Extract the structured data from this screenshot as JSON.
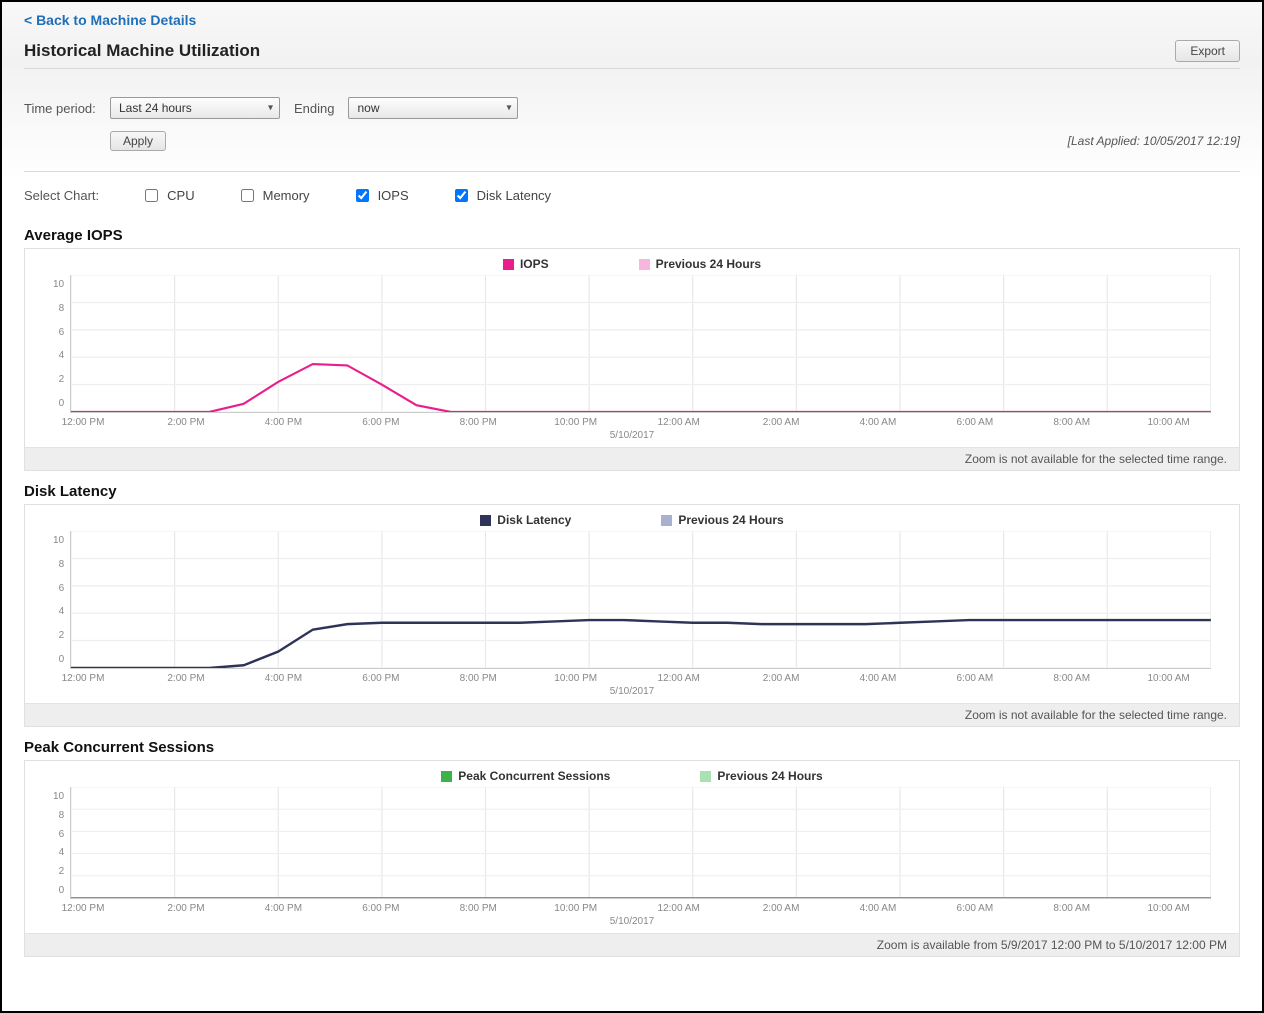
{
  "nav": {
    "back_label": "< Back to Machine Details"
  },
  "header": {
    "title": "Historical Machine Utilization",
    "export_label": "Export"
  },
  "controls": {
    "time_period_label": "Time period:",
    "time_period_value": "Last 24 hours",
    "ending_label": "Ending",
    "ending_value": "now",
    "apply_label": "Apply",
    "last_applied": "[Last Applied: 10/05/2017 12:19]"
  },
  "chart_selector": {
    "label": "Select Chart:",
    "options": [
      {
        "label": "CPU",
        "checked": false
      },
      {
        "label": "Memory",
        "checked": false
      },
      {
        "label": "IOPS",
        "checked": true
      },
      {
        "label": "Disk Latency",
        "checked": true
      }
    ]
  },
  "shared_axis": {
    "y_ticks": [
      10,
      8,
      6,
      4,
      2,
      0
    ],
    "x_labels": [
      "12:00 PM",
      "2:00 PM",
      "4:00 PM",
      "6:00 PM",
      "8:00 PM",
      "10:00 PM",
      "12:00 AM",
      "2:00 AM",
      "4:00 AM",
      "6:00 AM",
      "8:00 AM",
      "10:00 AM"
    ],
    "date_caption": "5/10/2017",
    "ylim": [
      0,
      10
    ],
    "grid_color": "#e7e7e7",
    "background_color": "#ffffff",
    "tick_fontsize": 10,
    "tick_color": "#888888"
  },
  "charts": {
    "iops": {
      "title": "Average IOPS",
      "type": "line",
      "legend": [
        {
          "label": "IOPS",
          "color": "#e91e8c"
        },
        {
          "label": "Previous 24 Hours",
          "color": "#f6b6dd"
        }
      ],
      "series": {
        "primary_color": "#e91e8c",
        "secondary_color": "#f6b6dd",
        "line_width": 1.6,
        "values": [
          0,
          0,
          0,
          0,
          0.0,
          0.6,
          2.2,
          3.5,
          3.4,
          2.0,
          0.5,
          0,
          0,
          0,
          0,
          0,
          0,
          0,
          0,
          0,
          0,
          0,
          0,
          0,
          0,
          0,
          0,
          0,
          0,
          0,
          0,
          0,
          0,
          0
        ]
      },
      "zoom_note": "Zoom is not available for the selected time range."
    },
    "disk_latency": {
      "title": "Disk Latency",
      "type": "line",
      "legend": [
        {
          "label": "Disk Latency",
          "color": "#2f3357"
        },
        {
          "label": "Previous 24 Hours",
          "color": "#aab0d0"
        }
      ],
      "series": {
        "primary_color": "#2f3357",
        "secondary_color": "#aab0d0",
        "line_width": 1.8,
        "values": [
          0,
          0,
          0,
          0,
          0,
          0.2,
          1.2,
          2.8,
          3.2,
          3.3,
          3.3,
          3.3,
          3.3,
          3.3,
          3.4,
          3.5,
          3.5,
          3.4,
          3.3,
          3.3,
          3.2,
          3.2,
          3.2,
          3.2,
          3.3,
          3.4,
          3.5,
          3.5,
          3.5,
          3.5,
          3.5,
          3.5,
          3.5,
          3.5
        ]
      },
      "zoom_note": "Zoom is not available for the selected time range."
    },
    "peak_sessions": {
      "title": "Peak Concurrent Sessions",
      "type": "line",
      "legend": [
        {
          "label": "Peak Concurrent Sessions",
          "color": "#3bb34a"
        },
        {
          "label": "Previous 24 Hours",
          "color": "#a8e2b1"
        }
      ],
      "series": {
        "primary_color": "#3bb34a",
        "secondary_color": "#a8e2b1",
        "line_width": 1.6,
        "values": [
          0,
          0,
          0,
          0,
          0,
          0,
          0,
          0,
          0,
          0,
          0,
          0,
          0,
          0,
          0,
          0,
          0,
          0,
          0,
          0,
          0,
          0,
          0,
          0,
          0,
          0,
          0,
          0,
          0,
          0,
          0,
          0,
          0,
          0
        ]
      },
      "zoom_note": "Zoom is available from 5/9/2017 12:00 PM to 5/10/2017 12:00 PM"
    }
  }
}
